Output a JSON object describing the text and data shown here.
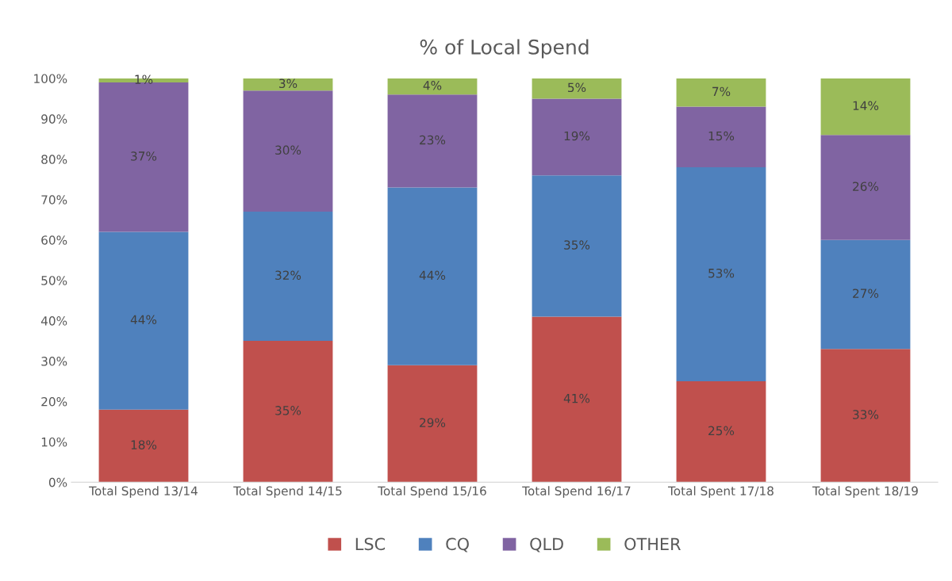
{
  "chart_data": {
    "type": "bar",
    "title": "% of Local Spend",
    "stacked": true,
    "categories": [
      "Total Spend 13/14",
      "Total Spend 14/15",
      "Total Spend 15/16",
      "Total Spend 16/17",
      "Total Spent 17/18",
      "Total Spent 18/19"
    ],
    "series": [
      {
        "name": "LSC",
        "color": "#c0504d",
        "values": [
          18,
          35,
          29,
          41,
          25,
          33
        ],
        "value_labels": [
          "18%",
          "35%",
          "29%",
          "41%",
          "25%",
          "33%"
        ]
      },
      {
        "name": "CQ",
        "color": "#4f81bd",
        "values": [
          44,
          32,
          44,
          35,
          53,
          27
        ],
        "value_labels": [
          "44%",
          "32%",
          "44%",
          "35%",
          "53%",
          "27%"
        ]
      },
      {
        "name": "QLD",
        "color": "#8064a2",
        "values": [
          37,
          30,
          23,
          19,
          15,
          26
        ],
        "value_labels": [
          "37%",
          "30%",
          "23%",
          "19%",
          "15%",
          "26%"
        ]
      },
      {
        "name": "OTHER",
        "color": "#9bbb59",
        "values": [
          1,
          3,
          4,
          5,
          7,
          14
        ],
        "value_labels": [
          "1%",
          "3%",
          "4%",
          "5%",
          "7%",
          "14%"
        ]
      }
    ],
    "ylim": [
      0,
      100
    ],
    "yticks": [
      {
        "value": 0,
        "label": "0%"
      },
      {
        "value": 10,
        "label": "10%"
      },
      {
        "value": 20,
        "label": "20%"
      },
      {
        "value": 30,
        "label": "30%"
      },
      {
        "value": 40,
        "label": "40%"
      },
      {
        "value": 50,
        "label": "50%"
      },
      {
        "value": 60,
        "label": "60%"
      },
      {
        "value": 70,
        "label": "70%"
      },
      {
        "value": 80,
        "label": "80%"
      },
      {
        "value": 90,
        "label": "90%"
      },
      {
        "value": 100,
        "label": "100%"
      }
    ],
    "grid": false,
    "legend": "bottom"
  }
}
